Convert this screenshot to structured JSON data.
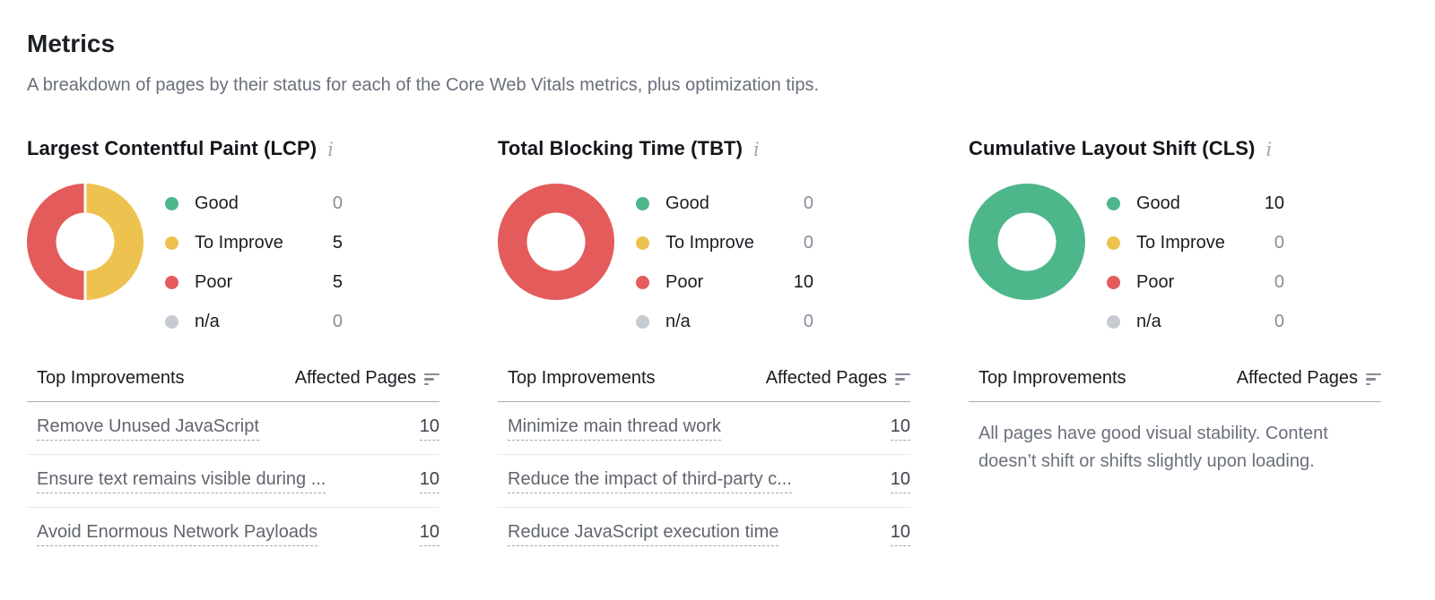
{
  "page": {
    "title": "Metrics",
    "subtitle": "A breakdown of pages by their status for each of the Core Web Vitals metrics, plus optimization tips."
  },
  "icons": {
    "info": "i",
    "sort": "sort-descending"
  },
  "table_header": {
    "improvements": "Top Improvements",
    "affected": "Affected Pages"
  },
  "chart_data": [
    {
      "type": "pie",
      "title": "Largest Contentful Paint (LCP)",
      "categories": [
        "Good",
        "To Improve",
        "Poor",
        "n/a"
      ],
      "values": [
        0,
        5,
        5,
        0
      ]
    },
    {
      "type": "pie",
      "title": "Total Blocking Time (TBT)",
      "categories": [
        "Good",
        "To Improve",
        "Poor",
        "n/a"
      ],
      "values": [
        0,
        0,
        10,
        0
      ]
    },
    {
      "type": "pie",
      "title": "Cumulative Layout Shift (CLS)",
      "categories": [
        "Good",
        "To Improve",
        "Poor",
        "n/a"
      ],
      "values": [
        10,
        0,
        0,
        0
      ]
    }
  ],
  "metrics": [
    {
      "id": "lcp",
      "title": "Largest Contentful Paint (LCP)",
      "legend": [
        {
          "label": "Good",
          "value": 0,
          "color": "#4eb68b"
        },
        {
          "label": "To Improve",
          "value": 5,
          "color": "#edc24f"
        },
        {
          "label": "Poor",
          "value": 5,
          "color": "#e45b5b"
        },
        {
          "label": "n/a",
          "value": 0,
          "color": "#c6cad1"
        }
      ],
      "rows": [
        {
          "improvement": "Remove Unused JavaScript",
          "pages": "10"
        },
        {
          "improvement": "Ensure text remains visible during ...",
          "pages": "10"
        },
        {
          "improvement": "Avoid Enormous Network Payloads",
          "pages": "10"
        }
      ]
    },
    {
      "id": "tbt",
      "title": "Total Blocking Time (TBT)",
      "legend": [
        {
          "label": "Good",
          "value": 0,
          "color": "#4eb68b"
        },
        {
          "label": "To Improve",
          "value": 0,
          "color": "#edc24f"
        },
        {
          "label": "Poor",
          "value": 10,
          "color": "#e45b5b"
        },
        {
          "label": "n/a",
          "value": 0,
          "color": "#c6cad1"
        }
      ],
      "rows": [
        {
          "improvement": "Minimize main thread work",
          "pages": "10"
        },
        {
          "improvement": "Reduce the impact of third-party c...",
          "pages": "10"
        },
        {
          "improvement": "Reduce JavaScript execution time",
          "pages": "10"
        }
      ]
    },
    {
      "id": "cls",
      "title": "Cumulative Layout Shift (CLS)",
      "legend": [
        {
          "label": "Good",
          "value": 10,
          "color": "#4eb68b"
        },
        {
          "label": "To Improve",
          "value": 0,
          "color": "#edc24f"
        },
        {
          "label": "Poor",
          "value": 0,
          "color": "#e45b5b"
        },
        {
          "label": "n/a",
          "value": 0,
          "color": "#c6cad1"
        }
      ],
      "rows": [],
      "empty_message": "All pages have good visual stability. Content doesn’t shift or shifts slightly upon loading."
    }
  ]
}
